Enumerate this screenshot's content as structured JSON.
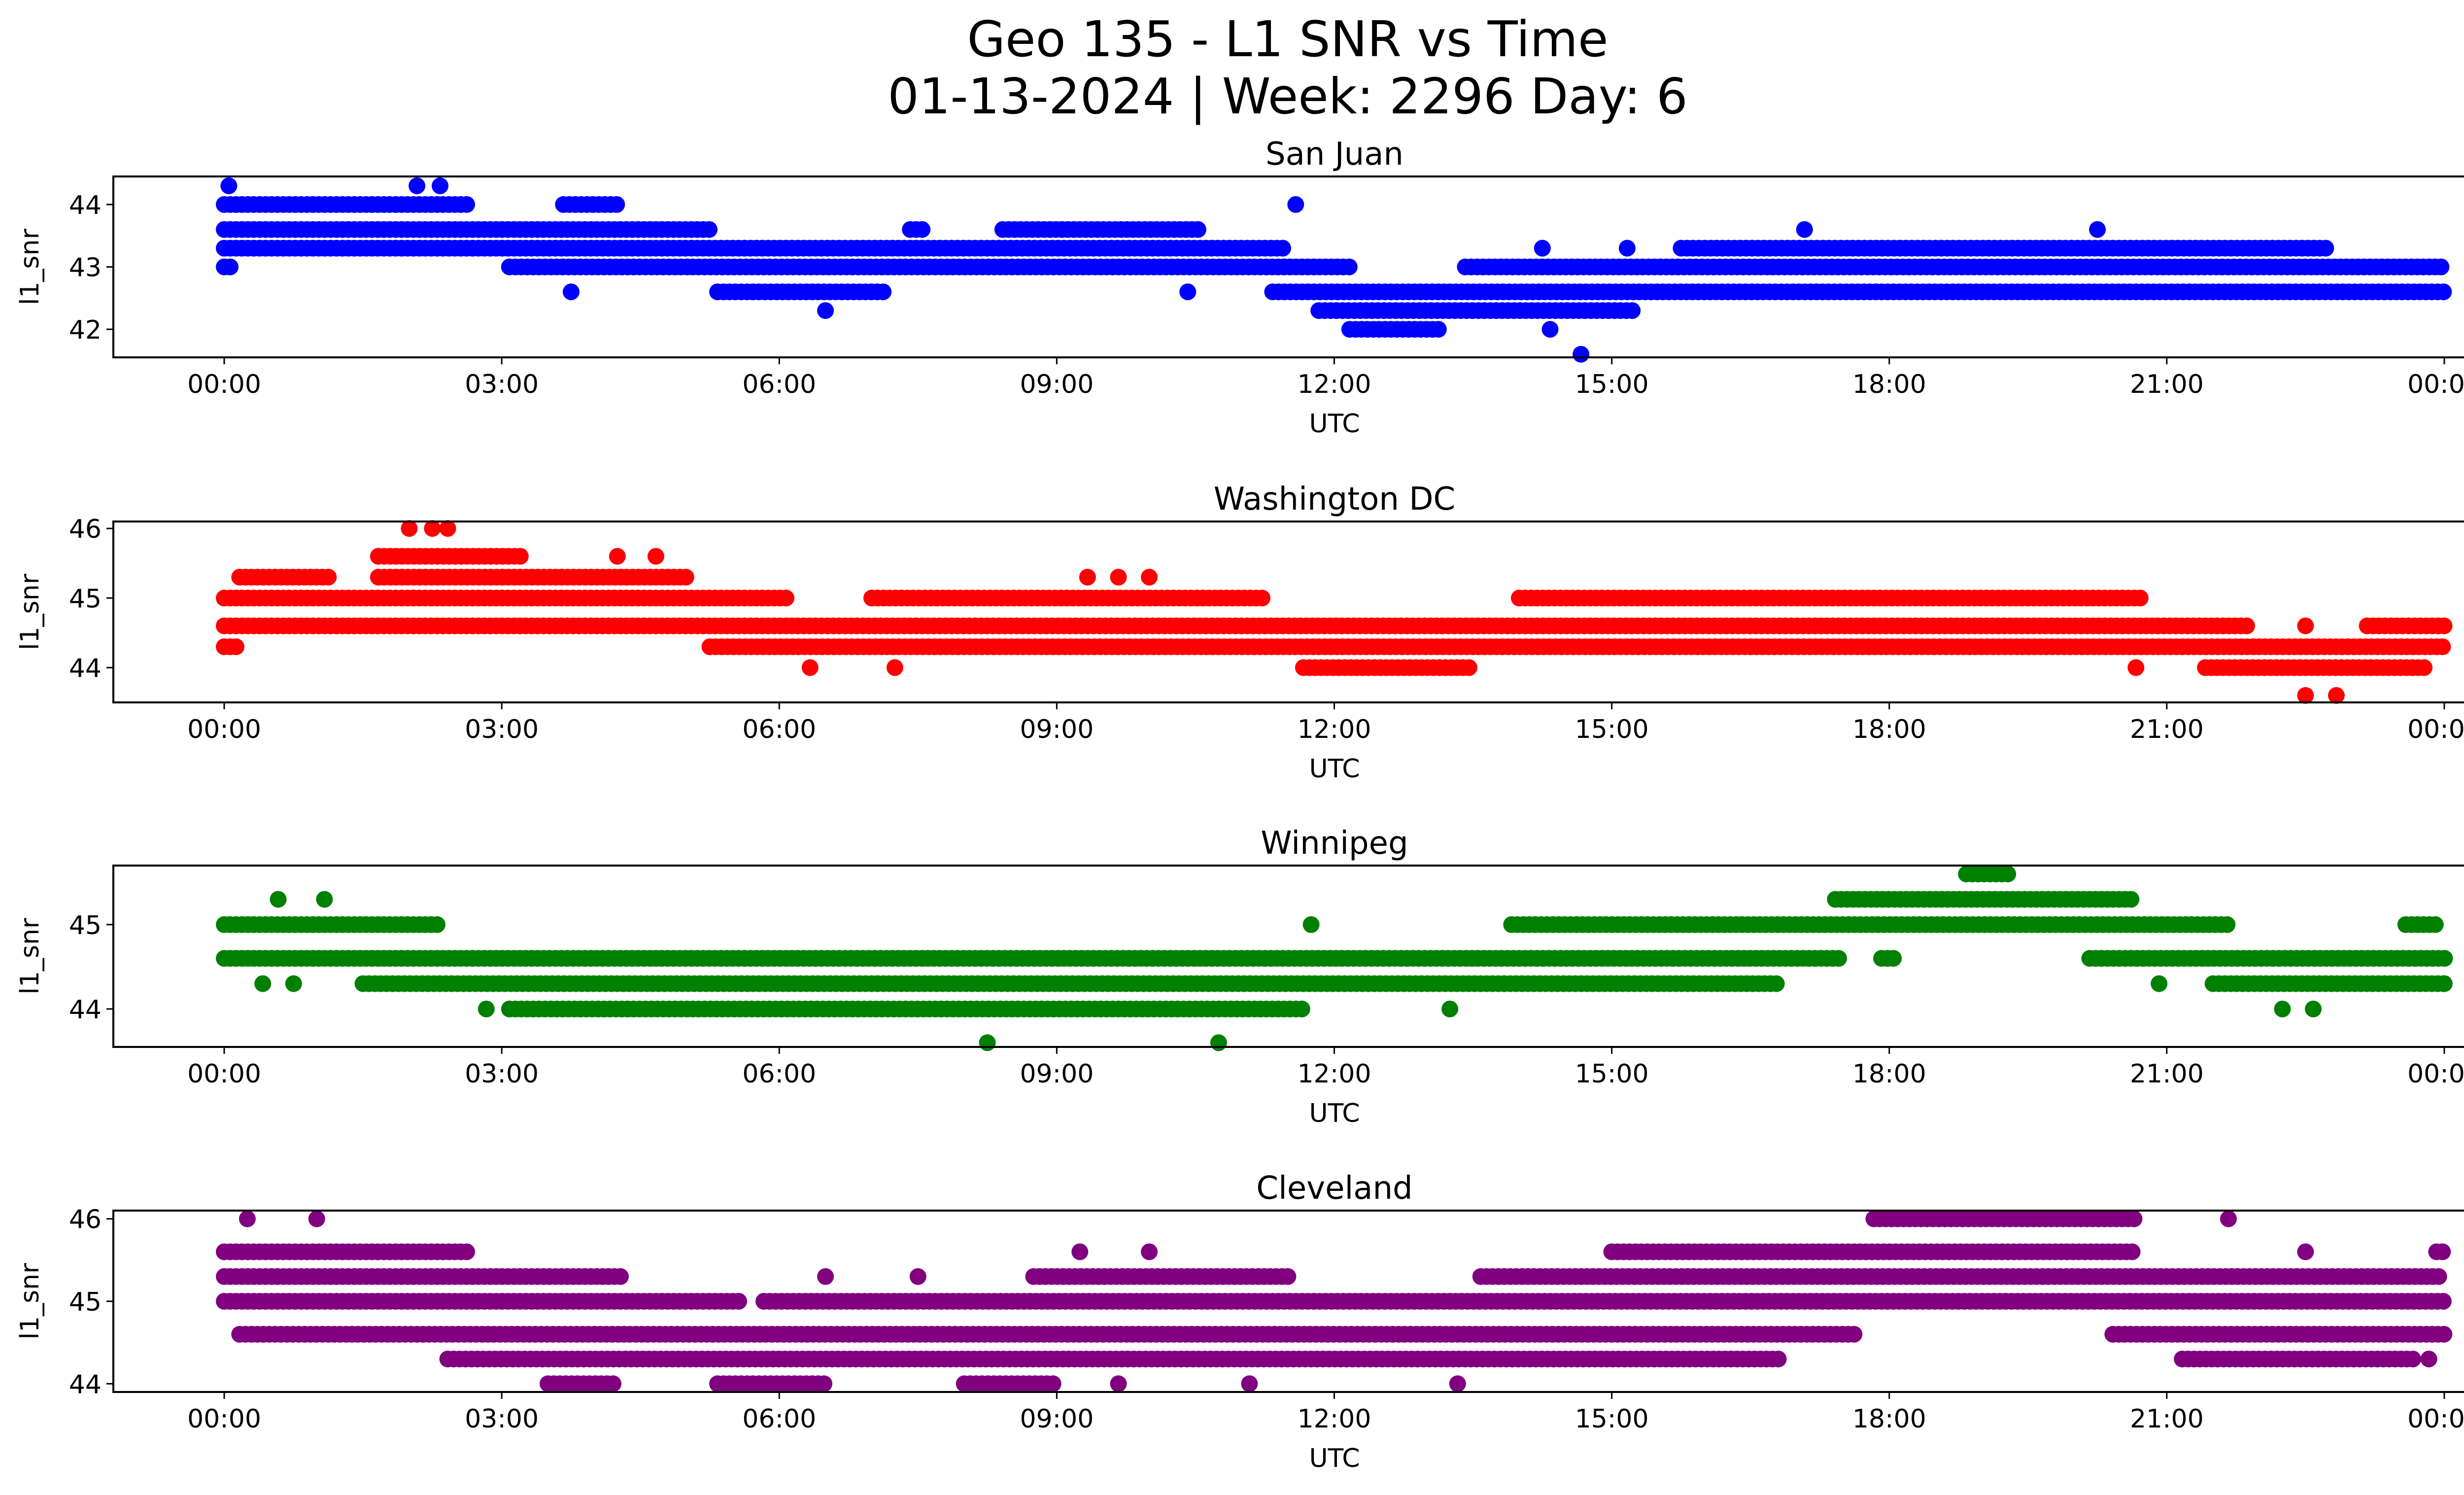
{
  "figure": {
    "title_line1": "Geo 135 - L1 SNR vs Time",
    "title_line2": "01-13-2024 | Week: 2296 Day: 6"
  },
  "chart_data": [
    {
      "type": "scatter",
      "title": "San Juan",
      "xlabel": "UTC",
      "ylabel": "l1_snr",
      "color": "#0000ff",
      "xlim": [
        "2024-01-13 00:00",
        "2024-01-14 00:00"
      ],
      "ylim": [
        41.55,
        44.45
      ],
      "xticks": [
        "00:00",
        "03:00",
        "06:00",
        "09:00",
        "12:00",
        "15:00",
        "18:00",
        "21:00",
        "00:00"
      ],
      "yticks": [
        42,
        43,
        44
      ],
      "bands": [
        {
          "y": 44.0,
          "x": [
            [
              "00:00",
              "02:40"
            ],
            [
              "03:40",
              "04:15"
            ]
          ]
        },
        {
          "y": 43.6,
          "x": [
            [
              "00:00",
              "05:15"
            ],
            [
              "07:25",
              "07:35"
            ],
            [
              "08:25",
              "10:35"
            ]
          ]
        },
        {
          "y": 43.3,
          "x": [
            [
              "00:00",
              "11:30"
            ],
            [
              "15:45",
              "22:45"
            ]
          ]
        },
        {
          "y": 43.0,
          "x": [
            [
              "00:00",
              "00:05"
            ],
            [
              "03:05",
              "12:10"
            ],
            [
              "13:25",
              "24:00"
            ]
          ]
        },
        {
          "y": 42.6,
          "x": [
            [
              "05:20",
              "07:10"
            ],
            [
              "11:20",
              "24:00"
            ]
          ]
        },
        {
          "y": 42.3,
          "x": [
            [
              "11:50",
              "15:15"
            ]
          ]
        },
        {
          "y": 42.0,
          "x": [
            [
              "12:10",
              "13:10"
            ]
          ]
        }
      ],
      "points": [
        {
          "x": "00:03",
          "y": 44.3
        },
        {
          "x": "02:05",
          "y": 44.3
        },
        {
          "x": "02:20",
          "y": 44.3
        },
        {
          "x": "11:35",
          "y": 44.0
        },
        {
          "x": "17:05",
          "y": 43.6
        },
        {
          "x": "20:15",
          "y": 43.6
        },
        {
          "x": "03:45",
          "y": 42.6
        },
        {
          "x": "06:30",
          "y": 42.3
        },
        {
          "x": "10:25",
          "y": 42.6
        },
        {
          "x": "14:15",
          "y": 43.3
        },
        {
          "x": "15:10",
          "y": 43.3
        },
        {
          "x": "14:20",
          "y": 42.0
        },
        {
          "x": "14:40",
          "y": 41.6
        }
      ]
    },
    {
      "type": "scatter",
      "title": "Washington DC",
      "xlabel": "UTC",
      "ylabel": "l1_snr",
      "color": "#ff0000",
      "xlim": [
        "2024-01-13 00:00",
        "2024-01-14 00:00"
      ],
      "ylim": [
        43.5,
        46.1
      ],
      "xticks": [
        "00:00",
        "03:00",
        "06:00",
        "09:00",
        "12:00",
        "15:00",
        "18:00",
        "21:00",
        "00:00"
      ],
      "yticks": [
        44,
        45,
        46
      ],
      "bands": [
        {
          "y": 45.6,
          "x": [
            [
              "01:40",
              "03:15"
            ]
          ]
        },
        {
          "y": 45.3,
          "x": [
            [
              "00:10",
              "01:10"
            ],
            [
              "01:40",
              "05:00"
            ]
          ]
        },
        {
          "y": 45.0,
          "x": [
            [
              "00:00",
              "06:05"
            ],
            [
              "07:00",
              "11:15"
            ],
            [
              "14:00",
              "20:45"
            ]
          ]
        },
        {
          "y": 44.6,
          "x": [
            [
              "00:00",
              "21:55"
            ],
            [
              "23:10",
              "24:00"
            ]
          ]
        },
        {
          "y": 44.3,
          "x": [
            [
              "00:00",
              "00:10"
            ],
            [
              "05:15",
              "24:00"
            ]
          ]
        },
        {
          "y": 44.0,
          "x": [
            [
              "11:40",
              "13:30"
            ],
            [
              "21:25",
              "23:50"
            ]
          ]
        }
      ],
      "points": [
        {
          "x": "02:00",
          "y": 46.0
        },
        {
          "x": "02:15",
          "y": 46.0
        },
        {
          "x": "02:25",
          "y": 46.0
        },
        {
          "x": "04:15",
          "y": 45.6
        },
        {
          "x": "04:40",
          "y": 45.6
        },
        {
          "x": "09:20",
          "y": 45.3
        },
        {
          "x": "09:40",
          "y": 45.3
        },
        {
          "x": "10:00",
          "y": 45.3
        },
        {
          "x": "06:20",
          "y": 44.0
        },
        {
          "x": "07:15",
          "y": 44.0
        },
        {
          "x": "22:30",
          "y": 43.6
        },
        {
          "x": "22:50",
          "y": 43.6
        },
        {
          "x": "22:30",
          "y": 44.6
        },
        {
          "x": "20:40",
          "y": 44.0
        }
      ]
    },
    {
      "type": "scatter",
      "title": "Winnipeg",
      "xlabel": "UTC",
      "ylabel": "l1_snr",
      "color": "#008000",
      "xlim": [
        "2024-01-13 00:00",
        "2024-01-14 00:00"
      ],
      "ylim": [
        43.55,
        45.7
      ],
      "xticks": [
        "00:00",
        "03:00",
        "06:00",
        "09:00",
        "12:00",
        "15:00",
        "18:00",
        "21:00",
        "00:00"
      ],
      "yticks": [
        44,
        45
      ],
      "bands": [
        {
          "y": 45.6,
          "x": [
            [
              "18:50",
              "19:20"
            ]
          ]
        },
        {
          "y": 45.3,
          "x": [
            [
              "17:25",
              "20:40"
            ]
          ]
        },
        {
          "y": 45.0,
          "x": [
            [
              "00:00",
              "02:20"
            ],
            [
              "13:55",
              "21:40"
            ],
            [
              "23:35",
              "23:55"
            ]
          ]
        },
        {
          "y": 44.6,
          "x": [
            [
              "00:00",
              "17:30"
            ],
            [
              "17:55",
              "18:05"
            ],
            [
              "20:10",
              "24:00"
            ]
          ]
        },
        {
          "y": 44.3,
          "x": [
            [
              "01:30",
              "16:50"
            ],
            [
              "21:30",
              "24:00"
            ]
          ]
        },
        {
          "y": 44.0,
          "x": [
            [
              "03:05",
              "11:40"
            ]
          ]
        }
      ],
      "points": [
        {
          "x": "00:35",
          "y": 45.3
        },
        {
          "x": "01:05",
          "y": 45.3
        },
        {
          "x": "00:25",
          "y": 44.3
        },
        {
          "x": "00:45",
          "y": 44.3
        },
        {
          "x": "02:50",
          "y": 44.0
        },
        {
          "x": "08:15",
          "y": 43.6
        },
        {
          "x": "10:45",
          "y": 43.6
        },
        {
          "x": "11:45",
          "y": 45.0
        },
        {
          "x": "13:15",
          "y": 44.0
        },
        {
          "x": "20:55",
          "y": 44.3
        },
        {
          "x": "22:15",
          "y": 44.0
        },
        {
          "x": "22:35",
          "y": 44.0
        },
        {
          "x": "24:00",
          "y": 44.3
        }
      ]
    },
    {
      "type": "scatter",
      "title": "Cleveland",
      "xlabel": "UTC",
      "ylabel": "l1_snr",
      "color": "#800080",
      "xlim": [
        "2024-01-13 00:00",
        "2024-01-14 00:00"
      ],
      "ylim": [
        43.9,
        46.1
      ],
      "xticks": [
        "00:00",
        "03:00",
        "06:00",
        "09:00",
        "12:00",
        "15:00",
        "18:00",
        "21:00",
        "00:00"
      ],
      "yticks": [
        44,
        45,
        46
      ],
      "bands": [
        {
          "y": 46.0,
          "x": [
            [
              "17:50",
              "20:40"
            ]
          ]
        },
        {
          "y": 45.6,
          "x": [
            [
              "00:00",
              "02:40"
            ],
            [
              "15:00",
              "20:40"
            ],
            [
              "23:55",
              "24:00"
            ]
          ]
        },
        {
          "y": 45.3,
          "x": [
            [
              "00:00",
              "04:20"
            ],
            [
              "08:45",
              "11:30"
            ],
            [
              "13:35",
              "24:00"
            ]
          ]
        },
        {
          "y": 45.0,
          "x": [
            [
              "00:00",
              "05:35"
            ],
            [
              "05:50",
              "24:00"
            ]
          ]
        },
        {
          "y": 44.6,
          "x": [
            [
              "00:10",
              "17:40"
            ],
            [
              "20:25",
              "24:00"
            ]
          ]
        },
        {
          "y": 44.3,
          "x": [
            [
              "02:25",
              "16:50"
            ],
            [
              "21:10",
              "23:40"
            ]
          ]
        },
        {
          "y": 44.0,
          "x": [
            [
              "03:30",
              "04:15"
            ],
            [
              "05:20",
              "06:30"
            ],
            [
              "08:00",
              "09:00"
            ]
          ]
        }
      ],
      "points": [
        {
          "x": "00:15",
          "y": 46.0
        },
        {
          "x": "01:00",
          "y": 46.0
        },
        {
          "x": "21:40",
          "y": 46.0
        },
        {
          "x": "09:15",
          "y": 45.6
        },
        {
          "x": "10:00",
          "y": 45.6
        },
        {
          "x": "22:30",
          "y": 45.6
        },
        {
          "x": "06:30",
          "y": 45.3
        },
        {
          "x": "07:30",
          "y": 45.3
        },
        {
          "x": "11:05",
          "y": 44.0
        },
        {
          "x": "13:20",
          "y": 44.0
        },
        {
          "x": "23:50",
          "y": 44.3
        },
        {
          "x": "09:40",
          "y": 44.0
        }
      ]
    }
  ]
}
